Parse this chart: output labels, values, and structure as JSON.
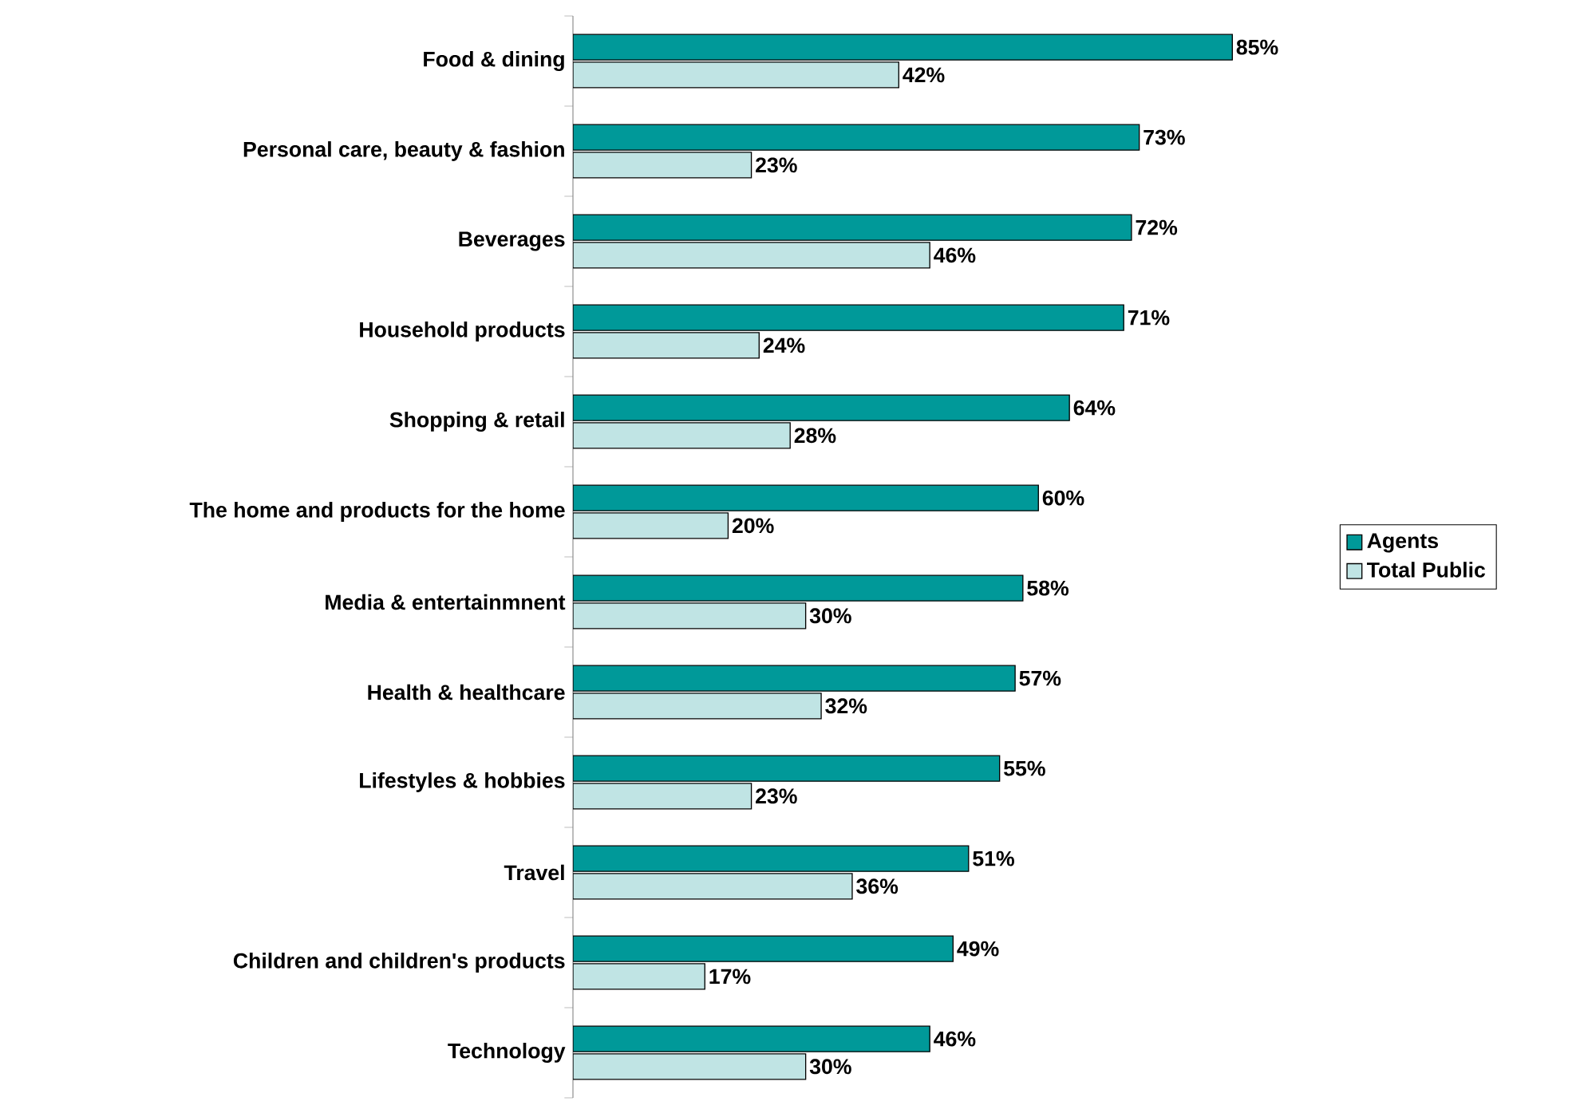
{
  "chart_data": {
    "type": "bar",
    "orientation": "horizontal",
    "legend": "right",
    "categories": [
      "Food & dining",
      "Personal care, beauty & fashion",
      "Beverages",
      "Household products",
      "Shopping & retail",
      "The home and products for the home",
      "Media & entertainmnent",
      "Health & healthcare",
      "Lifestyles & hobbies",
      "Travel",
      "Children and children's products",
      "Technology"
    ],
    "series": [
      {
        "name": "Agents",
        "color": "#009999",
        "values": [
          85,
          73,
          72,
          71,
          64,
          60,
          58,
          57,
          55,
          51,
          49,
          46
        ],
        "value_labels": [
          "85%",
          "73%",
          "72%",
          "71%",
          "64%",
          "60%",
          "58%",
          "57%",
          "55%",
          "51%",
          "49%",
          "46%"
        ]
      },
      {
        "name": "Total Public",
        "color": "#c0e4e4",
        "values": [
          42,
          23,
          46,
          24,
          28,
          20,
          30,
          32,
          23,
          36,
          17,
          30
        ],
        "value_labels": [
          "42%",
          "23%",
          "46%",
          "24%",
          "28%",
          "20%",
          "30%",
          "32%",
          "23%",
          "36%",
          "17%",
          "30%"
        ]
      }
    ]
  }
}
